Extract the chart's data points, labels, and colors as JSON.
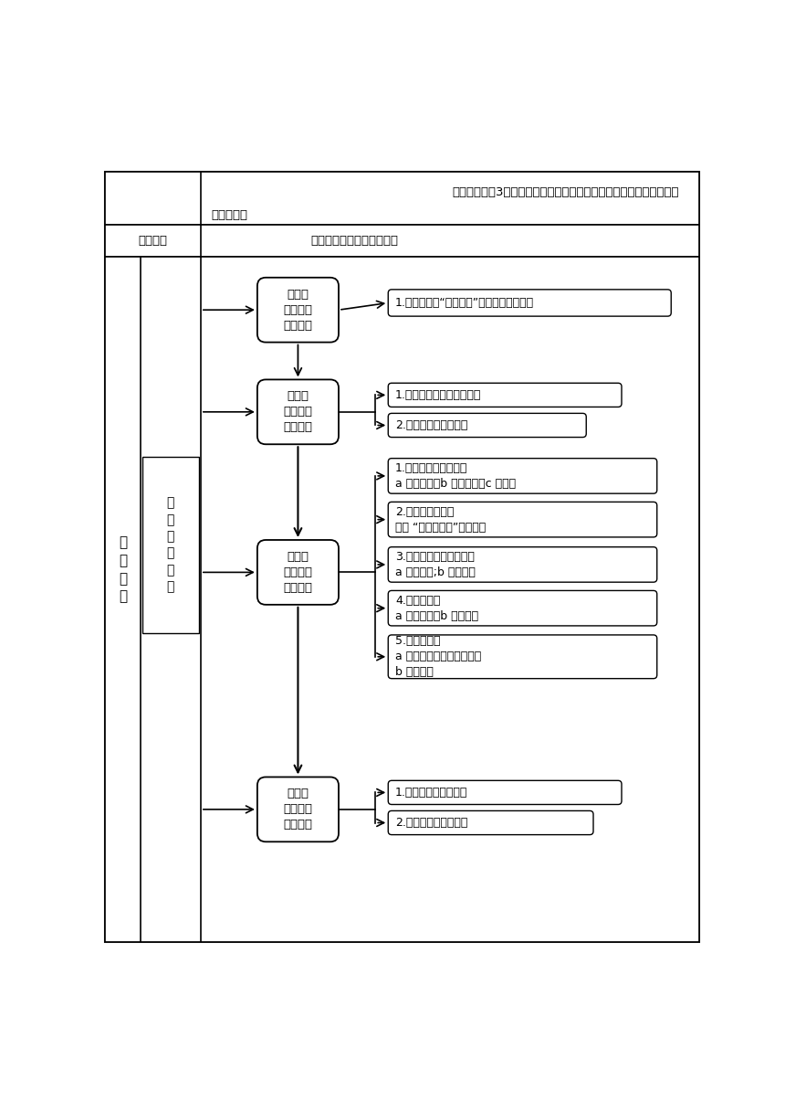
{
  "bg_color": "#ffffff",
  "border_color": "#000000",
  "qi_cai_line1": "器材：试管（3支）、试管架、试管夹、废液回收瓶、胶头滴管、燃烧",
  "qi_cai_line2": "匣、酒精灯",
  "jiao_xue_yong_ju": "西沃软件、实物展台、黑板",
  "left_main": "教\n学\n流\n程",
  "left_sub": "远\n离\n有\n毒\n物\n质",
  "node1": "环节一\n创设情境\n引入新课",
  "node2": "环节二\n走进生活\n感触化学",
  "node3": "环节三\n内容深入\n合作交流",
  "node4": "环节四\n练习反馈\n总结提升",
  "box1": "1.展示图片，“把脉问诊”，引出课题并板书",
  "box2a": "1.学生展示带来的有害物质",
  "box2b": "2.将有毒物质进行分类",
  "box3a": "1.预防重金属盐中毒：\na 观看视频；b 实验探究；c 议一议",
  "box3b": "2.不吃变质食物：\n活动 “我来当老师”学生讲解",
  "box3c": "3.限量摄入食品添加剂：\na 观看视频;b 分享交流",
  "box3d": "4.远离烟草：\na 展示小品；b 分享交流",
  "box3e": "5.拒绝毒品：\na 汇报交流所查阅的资料；\nb 播放视频",
  "box4a": "1.当堂检测，练习反馈",
  "box4b": "2.课堂小结，教师寄语"
}
